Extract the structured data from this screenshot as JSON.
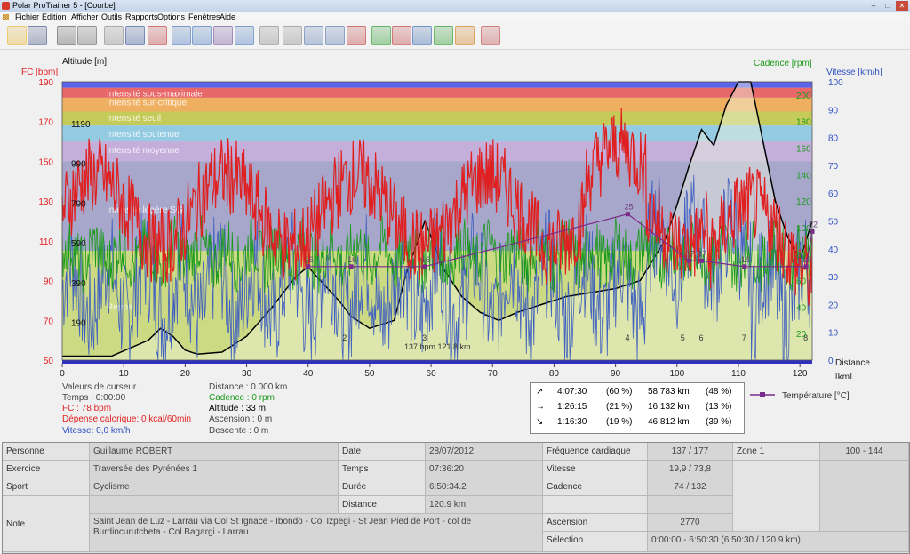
{
  "window": {
    "title": "Polar ProTrainer 5 - [Courbe]"
  },
  "menu": [
    "Fichier",
    "Edition",
    "Afficher",
    "Outils",
    "Rapports",
    "Options",
    "Fenêtres",
    "Aide"
  ],
  "toolbar_icons": [
    "open-folder-icon",
    "save-icon",
    "settings-icon",
    "settings2-icon",
    "calendar-icon",
    "book-icon",
    "user-icon",
    "curve-icon",
    "bars-icon",
    "percent-icon",
    "list-icon",
    "zoom-icon",
    "scale-icon",
    "marker-icon",
    "lap-icon",
    "wave-icon",
    "chart1-icon",
    "chart2-icon",
    "chart3-icon",
    "chart4-icon",
    "chart5-icon",
    "persons-icon"
  ],
  "chart_data": {
    "type": "line",
    "left_axis_titles": {
      "hr": "FC [bpm]",
      "alt": "Altitude  [m]"
    },
    "right_axis_titles": {
      "cad": "Cadence [rpm]",
      "speed": "Vitesse [km/h]"
    },
    "xlabel": "Distance",
    "xunit": "[km]",
    "x_ticks": [
      "0",
      "10",
      "20",
      "30",
      "40",
      "50",
      "60",
      "70",
      "80",
      "90",
      "100",
      "110",
      "120"
    ],
    "hr_ticks": [
      "50",
      "70",
      "90",
      "110",
      "130",
      "150",
      "170",
      "190"
    ],
    "alt_ticks": [
      "190",
      "390",
      "590",
      "790",
      "990",
      "1190"
    ],
    "cad_ticks": [
      "20",
      "40",
      "60",
      "80",
      "100",
      "120",
      "140",
      "160",
      "180",
      "200"
    ],
    "speed_ticks": [
      "0",
      "10",
      "20",
      "30",
      "40",
      "50",
      "60",
      "70",
      "80",
      "90",
      "100"
    ],
    "zones": [
      "Intensité sous-maximale",
      "Intensité sur-critique",
      "Intensité seuil",
      "Intensité soutenue",
      "Intensité moyenne",
      "Intensité légère SG",
      "Repos"
    ],
    "zone_colors": [
      "#4a54e8",
      "#e85a5a",
      "#f0a850",
      "#c0c848",
      "#8bc8e0",
      "#c0a8d8",
      "#a0a0c8",
      "#c8d870"
    ],
    "xlim": [
      0,
      122
    ],
    "hr_range": [
      50,
      190
    ],
    "temperature": {
      "label": "Température [°C]",
      "points": [
        [
          40,
          16
        ],
        [
          47,
          16
        ],
        [
          59,
          16
        ],
        [
          92,
          25
        ],
        [
          102,
          17
        ],
        [
          104,
          17
        ],
        [
          111,
          16
        ],
        [
          121,
          16
        ],
        [
          122,
          22
        ]
      ]
    },
    "lap_markers": [
      {
        "x": 46,
        "label": "2"
      },
      {
        "x": 59,
        "label": "3"
      },
      {
        "x": 92,
        "label": "4"
      },
      {
        "x": 101,
        "label": "5"
      },
      {
        "x": 104,
        "label": "6"
      },
      {
        "x": 111,
        "label": "7"
      },
      {
        "x": 121,
        "label": "8"
      }
    ],
    "annotation": "137 bpm 121.8 km"
  },
  "cursor": {
    "title": "Valeurs de curseur :",
    "time": "Temps : 0:00:00",
    "hr": "FC : 78 bpm",
    "kcal": "Dépense calorique: 0 kcal/60min",
    "speed": "Vitesse: 0,0 km/h",
    "distance": "Distance : 0.000 km",
    "cadence": "Cadence : 0 rpm",
    "altitude": "Altitude : 33 m",
    "ascent": "Ascension : 0 m",
    "descent": "Descente : 0 m"
  },
  "summary": [
    {
      "sym": "↗",
      "time": "4:07:30",
      "pct": "(60 %)",
      "dist": "58.783 km",
      "dpct": "(48 %)"
    },
    {
      "sym": "→",
      "time": "1:26:15",
      "pct": "(21 %)",
      "dist": "16.132 km",
      "dpct": "(13 %)"
    },
    {
      "sym": "↘",
      "time": "1:16:30",
      "pct": "(19 %)",
      "dist": "46.812 km",
      "dpct": "(39 %)"
    }
  ],
  "legend_temp": "Température [°C]",
  "info": {
    "personne_lbl": "Personne",
    "personne": "Guillaume ROBERT",
    "exercice_lbl": "Exercice",
    "exercice": "Traversée des Pyrénées 1",
    "sport_lbl": "Sport",
    "sport": "Cyclisme",
    "note_lbl": "Note",
    "note": "Saint Jean de Luz - Larrau via Col St Ignace - Ibondo - Col Izpegi - St Jean Pied de Port -  col de Burdincurutcheta - Col Bagargi - Larrau",
    "date_lbl": "Date",
    "date": "28/07/2012",
    "temps_lbl": "Temps",
    "temps": "07:36:20",
    "duree_lbl": "Durée",
    "duree": "6:50:34.2",
    "distance_lbl": "Distance",
    "distance": "120.9 km",
    "fc_lbl": "Fréquence cardiaque",
    "fc": "137 / 177",
    "vitesse_lbl": "Vitesse",
    "vitesse": "19,9 / 73,8",
    "cadence_lbl": "Cadence",
    "cadence": "74 / 132",
    "ascension_lbl": "Ascension",
    "ascension": "2770",
    "selection_lbl": "Sélection",
    "selection": "0:00:00 - 6:50:30 (6:50:30 / 120.9 km)",
    "zone_lbl": "Zone 1",
    "zone": "100 - 144"
  }
}
